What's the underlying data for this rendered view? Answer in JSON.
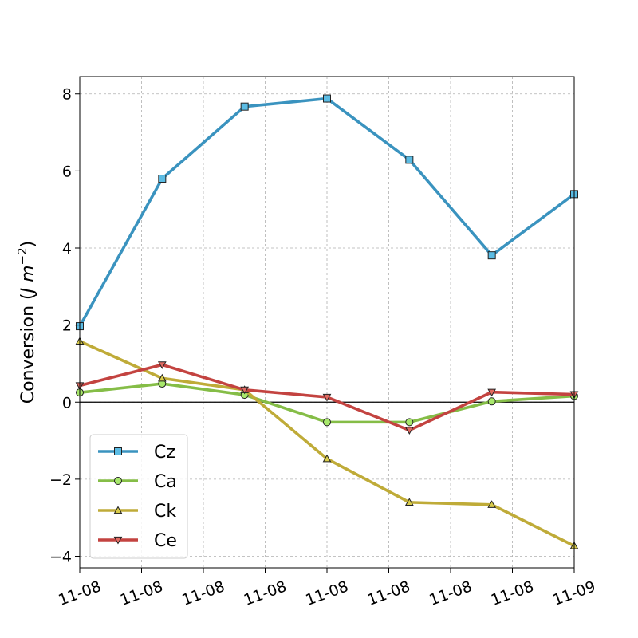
{
  "chart_data": {
    "type": "line",
    "x_tick_labels": [
      "11-08",
      "11-08",
      "11-08",
      "11-08",
      "11-08",
      "11-08",
      "11-08",
      "11-08",
      "11-09"
    ],
    "x": [
      0,
      1,
      2,
      3,
      4,
      5,
      6
    ],
    "ylabel_prefix": "Conversion (",
    "ylabel_unit": "J m",
    "ylabel_exp": "−2",
    "ylabel_suffix": ")",
    "ylim": [
      -4.3,
      8.45
    ],
    "yticks": [
      -4,
      -2,
      0,
      2,
      4,
      6,
      8
    ],
    "ytick_labels": [
      "−4",
      "−2",
      "0",
      "2",
      "4",
      "6",
      "8"
    ],
    "grid": true,
    "zero_line": true,
    "legend_position": "lower-left",
    "series": [
      {
        "name": "Cz",
        "color": "#3a93bf",
        "marker": "square",
        "marker_fill": "#5bbce4",
        "values": [
          1.97,
          5.8,
          7.67,
          7.88,
          6.29,
          3.81,
          5.4
        ]
      },
      {
        "name": "Ca",
        "color": "#85bd47",
        "marker": "circle",
        "marker_fill": "#a8e86c",
        "values": [
          0.25,
          0.48,
          0.19,
          -0.52,
          -0.52,
          0.02,
          0.16
        ]
      },
      {
        "name": "Ck",
        "color": "#bfab38",
        "marker": "triangle-up",
        "marker_fill": "#d9cc4a",
        "values": [
          1.58,
          0.62,
          0.32,
          -1.47,
          -2.6,
          -2.66,
          -3.73
        ]
      },
      {
        "name": "Ce",
        "color": "#c34340",
        "marker": "triangle-down",
        "marker_fill": "#e06b62",
        "values": [
          0.43,
          0.97,
          0.32,
          0.13,
          -0.73,
          0.26,
          0.2
        ]
      }
    ]
  }
}
